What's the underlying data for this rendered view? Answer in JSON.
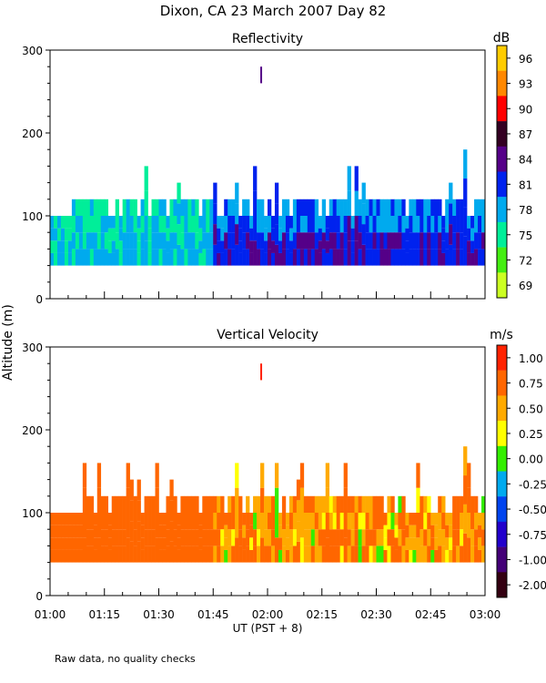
{
  "title": "Dixon, CA 23 March 2007  Day  82",
  "y_axis_label": "Altitude (m)",
  "x_axis_label": "UT  (PST + 8)",
  "footnote": "Raw data, no quality checks",
  "x_ticks": [
    "01:00",
    "01:15",
    "01:30",
    "01:45",
    "02:00",
    "02:15",
    "02:30",
    "02:45",
    "03:00"
  ],
  "chart_data": [
    {
      "type": "heatmap",
      "title": "Reflectivity",
      "xlim": [
        "01:00",
        "03:00"
      ],
      "ylim": [
        0,
        300
      ],
      "y_ticks": [
        0,
        100,
        200,
        300
      ],
      "colorbar": {
        "unit": "dB",
        "labels": [
          "96",
          "93",
          "90",
          "87",
          "84",
          "81",
          "78",
          "75",
          "72",
          "69"
        ],
        "colors": [
          "#ffcc00",
          "#ff8800",
          "#ff0000",
          "#330022",
          "#550088",
          "#0022ee",
          "#00aaee",
          "#00ee99",
          "#44ee11",
          "#ccff22"
        ]
      },
      "echo_base_m": 40,
      "typical_top_m": 120,
      "max_echo_top_m": 180,
      "isolated_echo": {
        "time": "01:58",
        "altitude_range_m": [
          260,
          280
        ],
        "color": "#550088"
      },
      "dominant_classes": {
        "01:00-01:45": [
          "75",
          "78"
        ],
        "01:45-03:00": [
          "81",
          "84"
        ]
      }
    },
    {
      "type": "heatmap",
      "title": "Vertical Velocity",
      "xlim": [
        "01:00",
        "03:00"
      ],
      "ylim": [
        0,
        300
      ],
      "y_ticks": [
        0,
        100,
        200,
        300
      ],
      "colorbar": {
        "unit": "m/s",
        "labels": [
          "1.00",
          "0.75",
          "0.50",
          "0.25",
          "0.00",
          "-0.25",
          "-0.50",
          "-0.75",
          "-1.00",
          "-2.00"
        ],
        "colors": [
          "#ff2200",
          "#ff6600",
          "#ffaa00",
          "#ffff00",
          "#33ee00",
          "#00aaee",
          "#0044ee",
          "#2200cc",
          "#440077",
          "#330011"
        ]
      },
      "echo_base_m": 40,
      "typical_top_m": 120,
      "max_echo_top_m": 180,
      "isolated_echo": {
        "time": "01:58",
        "altitude_range_m": [
          260,
          280
        ],
        "color": "#ff2200"
      },
      "dominant_classes": {
        "01:00-01:45": [
          "0.75"
        ],
        "01:45-03:00": [
          "0.75",
          "0.50"
        ]
      }
    }
  ]
}
